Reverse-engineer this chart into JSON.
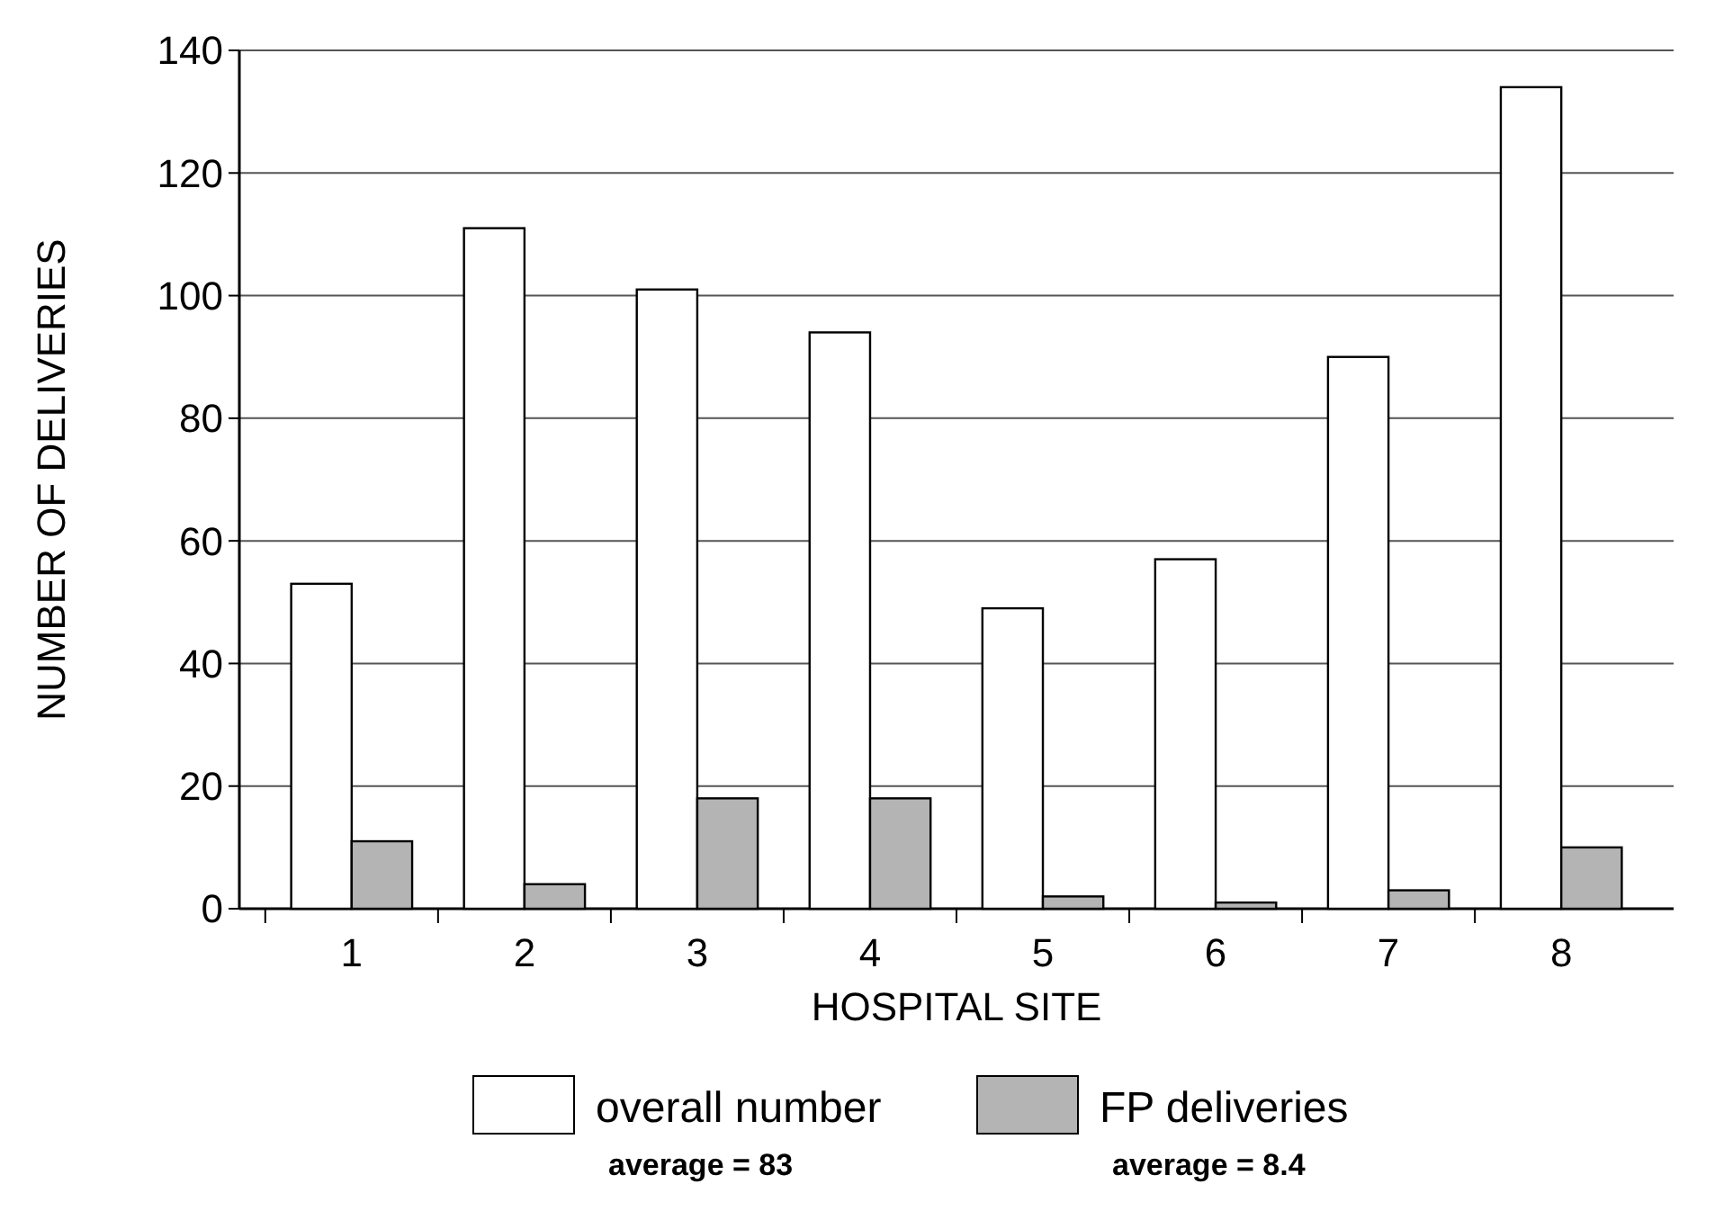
{
  "chart_data": {
    "type": "bar",
    "xlabel": "HOSPITAL SITE",
    "ylabel": "NUMBER  OF DELIVERIES",
    "categories": [
      "1",
      "2",
      "3",
      "4",
      "5",
      "6",
      "7",
      "8"
    ],
    "series": [
      {
        "name": "overall number",
        "color": "#ffffff",
        "values": [
          53,
          111,
          101,
          94,
          49,
          57,
          90,
          134
        ]
      },
      {
        "name": "FP deliveries",
        "color": "#b4b4b4",
        "values": [
          11,
          4,
          18,
          18,
          2,
          1,
          3,
          10
        ]
      }
    ],
    "ylim": [
      0,
      140
    ],
    "yticks": [
      0,
      20,
      40,
      60,
      80,
      100,
      120,
      140
    ],
    "grid": "y",
    "legend": "bottom",
    "annotations": [
      "average = 83",
      "average = 8.4"
    ]
  }
}
